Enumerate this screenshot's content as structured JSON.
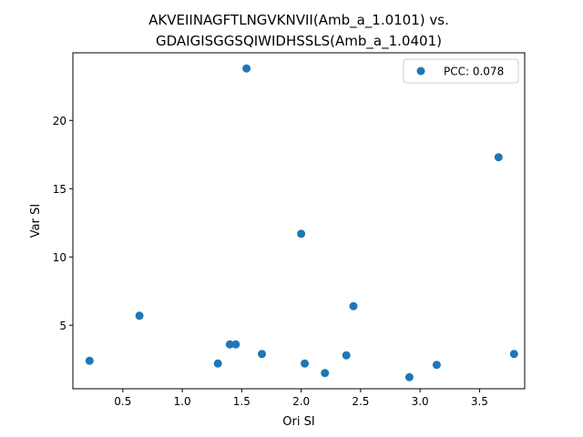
{
  "chart_data": {
    "type": "scatter",
    "title_line1": "AKVEIINAGFTLNGVKNVII(Amb_a_1.0101) vs.",
    "title_line2": "GDAIGISGGSQIWIDHSSLS(Amb_a_1.0401)",
    "xlabel": "Ori SI",
    "ylabel": "Var SI",
    "xlim": [
      0.08,
      3.88
    ],
    "ylim": [
      0.35,
      24.95
    ],
    "xticks": [
      "0.5",
      "1.0",
      "1.5",
      "2.0",
      "2.5",
      "3.0",
      "3.5"
    ],
    "xtick_values": [
      0.5,
      1.0,
      1.5,
      2.0,
      2.5,
      3.0,
      3.5
    ],
    "yticks": [
      "5",
      "10",
      "15",
      "20"
    ],
    "ytick_values": [
      5,
      10,
      15,
      20
    ],
    "grid": false,
    "legend_position": "top-right",
    "point_color": "#1f77b4",
    "series": [
      {
        "name": "PCC: 0.078",
        "points": [
          {
            "x": 0.22,
            "y": 2.4
          },
          {
            "x": 0.64,
            "y": 5.7
          },
          {
            "x": 1.3,
            "y": 2.2
          },
          {
            "x": 1.4,
            "y": 3.6
          },
          {
            "x": 1.45,
            "y": 3.6
          },
          {
            "x": 1.54,
            "y": 23.8
          },
          {
            "x": 1.67,
            "y": 2.9
          },
          {
            "x": 2.0,
            "y": 11.7
          },
          {
            "x": 2.03,
            "y": 2.2
          },
          {
            "x": 2.2,
            "y": 1.5
          },
          {
            "x": 2.38,
            "y": 2.8
          },
          {
            "x": 2.44,
            "y": 6.4
          },
          {
            "x": 2.91,
            "y": 1.2
          },
          {
            "x": 3.14,
            "y": 2.1
          },
          {
            "x": 3.66,
            "y": 17.3
          },
          {
            "x": 3.79,
            "y": 2.9
          }
        ]
      }
    ]
  }
}
